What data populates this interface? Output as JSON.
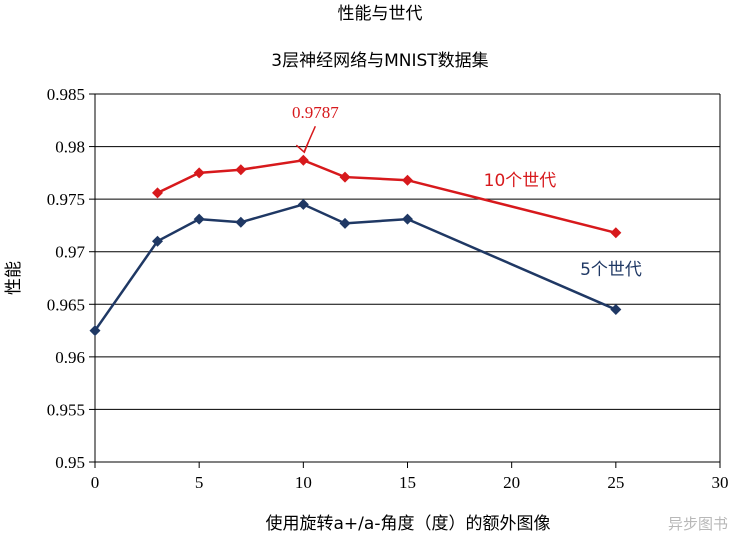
{
  "chart_data": {
    "type": "line",
    "title": "性能与世代",
    "subtitle": "3层神经网络与MNIST数据集",
    "xlabel": "使用旋转a+/a-角度（度）的额外图像",
    "ylabel": "性能",
    "xlim": [
      0,
      30
    ],
    "ylim": [
      0.95,
      0.985
    ],
    "x_ticks": [
      "0",
      "5",
      "10",
      "15",
      "20",
      "25",
      "30"
    ],
    "y_ticks": [
      "0.95",
      "0.955",
      "0.96",
      "0.965",
      "0.97",
      "0.975",
      "0.98",
      "0.985"
    ],
    "grid": "horizontal",
    "series": [
      {
        "name": "10个世代",
        "color": "#d7191c",
        "points": [
          [
            3,
            0.9756
          ],
          [
            5,
            0.9775
          ],
          [
            7,
            0.9778
          ],
          [
            10,
            0.9787
          ],
          [
            12,
            0.9771
          ],
          [
            15,
            0.9768
          ],
          [
            25,
            0.9718
          ]
        ]
      },
      {
        "name": "5个世代",
        "color": "#1f3864",
        "points": [
          [
            0,
            0.9625
          ],
          [
            3,
            0.971
          ],
          [
            5,
            0.9731
          ],
          [
            7,
            0.9728
          ],
          [
            10,
            0.9745
          ],
          [
            12,
            0.9727
          ],
          [
            15,
            0.9731
          ],
          [
            25,
            0.9645
          ]
        ]
      }
    ],
    "annotation": {
      "text": "0.9787",
      "x": 10,
      "y": 0.9787,
      "color": "#d7191c"
    }
  },
  "watermark": "异步图书"
}
